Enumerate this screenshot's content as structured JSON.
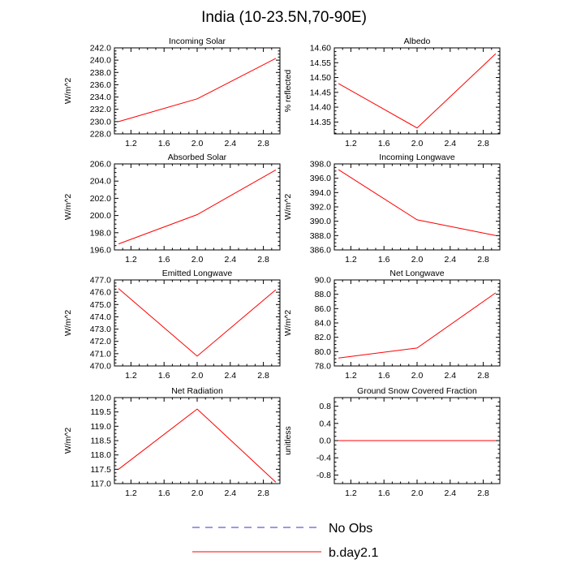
{
  "title": "India (10-23.5N,70-90E)",
  "colors": {
    "model": "#ff0000",
    "obs": "#3333cc",
    "axis": "#000000"
  },
  "chart_data": [
    {
      "type": "line",
      "title": "Incoming Solar",
      "ylabel": "W/m^2",
      "x": [
        1.05,
        2.0,
        2.95
      ],
      "series": [
        {
          "name": "b.day2.1",
          "values": [
            230.0,
            233.7,
            240.3
          ]
        }
      ],
      "xlim": [
        1.0,
        3.0
      ],
      "xticks": [
        1.2,
        1.6,
        2.0,
        2.4,
        2.8
      ],
      "xtick_labels": [
        "1.2",
        "1.6",
        "2.0",
        "2.4",
        "2.8"
      ],
      "ylim": [
        228.0,
        242.0
      ],
      "yticks": [
        228.0,
        230.0,
        232.0,
        234.0,
        236.0,
        238.0,
        240.0,
        242.0
      ],
      "ytick_labels": [
        "228.0",
        "230.0",
        "232.0",
        "234.0",
        "236.0",
        "238.0",
        "240.0",
        "242.0"
      ]
    },
    {
      "type": "line",
      "title": "Albedo",
      "ylabel": "% reflected",
      "x": [
        1.05,
        2.0,
        2.95
      ],
      "series": [
        {
          "name": "b.day2.1",
          "values": [
            14.48,
            14.33,
            14.58
          ]
        }
      ],
      "xlim": [
        1.0,
        3.0
      ],
      "xticks": [
        1.2,
        1.6,
        2.0,
        2.4,
        2.8
      ],
      "xtick_labels": [
        "1.2",
        "1.6",
        "2.0",
        "2.4",
        "2.8"
      ],
      "ylim": [
        14.31,
        14.6
      ],
      "yticks": [
        14.35,
        14.4,
        14.45,
        14.5,
        14.55,
        14.6
      ],
      "ytick_labels": [
        "14.35",
        "14.40",
        "14.45",
        "14.50",
        "14.55",
        "14.60"
      ]
    },
    {
      "type": "line",
      "title": "Absorbed Solar",
      "ylabel": "W/m^2",
      "x": [
        1.05,
        2.0,
        2.95
      ],
      "series": [
        {
          "name": "b.day2.1",
          "values": [
            196.7,
            200.1,
            205.3
          ]
        }
      ],
      "xlim": [
        1.0,
        3.0
      ],
      "xticks": [
        1.2,
        1.6,
        2.0,
        2.4,
        2.8
      ],
      "xtick_labels": [
        "1.2",
        "1.6",
        "2.0",
        "2.4",
        "2.8"
      ],
      "ylim": [
        196.0,
        206.0
      ],
      "yticks": [
        196.0,
        198.0,
        200.0,
        202.0,
        204.0,
        206.0
      ],
      "ytick_labels": [
        "196.0",
        "198.0",
        "200.0",
        "202.0",
        "204.0",
        "206.0"
      ]
    },
    {
      "type": "line",
      "title": "Incoming Longwave",
      "ylabel": "W/m^2",
      "x": [
        1.05,
        2.0,
        2.95
      ],
      "series": [
        {
          "name": "b.day2.1",
          "values": [
            397.2,
            390.2,
            388.0
          ]
        }
      ],
      "xlim": [
        1.0,
        3.0
      ],
      "xticks": [
        1.2,
        1.6,
        2.0,
        2.4,
        2.8
      ],
      "xtick_labels": [
        "1.2",
        "1.6",
        "2.0",
        "2.4",
        "2.8"
      ],
      "ylim": [
        386.0,
        398.0
      ],
      "yticks": [
        386.0,
        388.0,
        390.0,
        392.0,
        394.0,
        396.0,
        398.0
      ],
      "ytick_labels": [
        "386.0",
        "388.0",
        "390.0",
        "392.0",
        "394.0",
        "396.0",
        "398.0"
      ]
    },
    {
      "type": "line",
      "title": "Emitted Longwave",
      "ylabel": "W/m^2",
      "x": [
        1.05,
        2.0,
        2.95
      ],
      "series": [
        {
          "name": "b.day2.1",
          "values": [
            476.3,
            470.8,
            476.2
          ]
        }
      ],
      "xlim": [
        1.0,
        3.0
      ],
      "xticks": [
        1.2,
        1.6,
        2.0,
        2.4,
        2.8
      ],
      "xtick_labels": [
        "1.2",
        "1.6",
        "2.0",
        "2.4",
        "2.8"
      ],
      "ylim": [
        470.0,
        477.0
      ],
      "yticks": [
        470.0,
        471.0,
        472.0,
        473.0,
        474.0,
        475.0,
        476.0,
        477.0
      ],
      "ytick_labels": [
        "470.0",
        "471.0",
        "472.0",
        "473.0",
        "474.0",
        "475.0",
        "476.0",
        "477.0"
      ]
    },
    {
      "type": "line",
      "title": "Net Longwave",
      "ylabel": "W/m^2",
      "x": [
        1.05,
        2.0,
        2.95
      ],
      "series": [
        {
          "name": "b.day2.1",
          "values": [
            79.1,
            80.5,
            88.2
          ]
        }
      ],
      "xlim": [
        1.0,
        3.0
      ],
      "xticks": [
        1.2,
        1.6,
        2.0,
        2.4,
        2.8
      ],
      "xtick_labels": [
        "1.2",
        "1.6",
        "2.0",
        "2.4",
        "2.8"
      ],
      "ylim": [
        78.0,
        90.0
      ],
      "yticks": [
        78.0,
        80.0,
        82.0,
        84.0,
        86.0,
        88.0,
        90.0
      ],
      "ytick_labels": [
        "78.0",
        "80.0",
        "82.0",
        "84.0",
        "86.0",
        "88.0",
        "90.0"
      ]
    },
    {
      "type": "line",
      "title": "Net Radiation",
      "ylabel": "W/m^2",
      "x": [
        1.05,
        2.0,
        2.95
      ],
      "series": [
        {
          "name": "b.day2.1",
          "values": [
            117.5,
            119.6,
            117.05
          ]
        }
      ],
      "xlim": [
        1.0,
        3.0
      ],
      "xticks": [
        1.2,
        1.6,
        2.0,
        2.4,
        2.8
      ],
      "xtick_labels": [
        "1.2",
        "1.6",
        "2.0",
        "2.4",
        "2.8"
      ],
      "ylim": [
        117.0,
        120.0
      ],
      "yticks": [
        117.0,
        117.5,
        118.0,
        118.5,
        119.0,
        119.5,
        120.0
      ],
      "ytick_labels": [
        "117.0",
        "117.5",
        "118.0",
        "118.5",
        "119.0",
        "119.5",
        "120.0"
      ]
    },
    {
      "type": "line",
      "title": "Ground Snow Covered Fraction",
      "ylabel": "unitless",
      "x": [
        1.05,
        2.0,
        2.95
      ],
      "series": [
        {
          "name": "b.day2.1",
          "values": [
            0.0,
            0.0,
            0.0
          ]
        }
      ],
      "xlim": [
        1.0,
        3.0
      ],
      "xticks": [
        1.2,
        1.6,
        2.0,
        2.4,
        2.8
      ],
      "xtick_labels": [
        "1.2",
        "1.6",
        "2.0",
        "2.4",
        "2.8"
      ],
      "ylim": [
        -1.0,
        1.0
      ],
      "yticks": [
        -0.8,
        -0.4,
        0.0,
        0.4,
        0.8
      ],
      "ytick_labels": [
        "-0.8",
        "-0.4",
        "0.0",
        "0.4",
        "0.8"
      ]
    }
  ],
  "legend": [
    {
      "label": "No Obs",
      "style": "dashed",
      "color": "#3333cc"
    },
    {
      "label": "b.day2.1",
      "style": "solid",
      "color": "#ff0000"
    }
  ]
}
